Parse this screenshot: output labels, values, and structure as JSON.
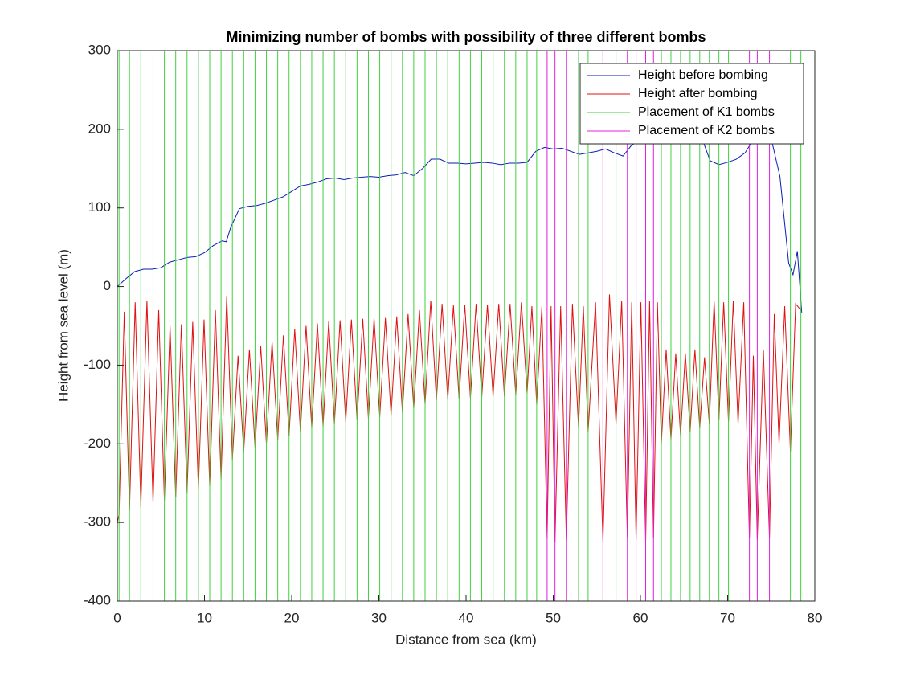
{
  "chart_data": {
    "type": "line",
    "title": "Minimizing number of bombs with possibility of three different bombs",
    "x_label": "Distance from sea (km)",
    "y_label": "Height from sea level (m)",
    "xlim": [
      0,
      80
    ],
    "ylim": [
      -400,
      300
    ],
    "xticks": [
      0,
      10,
      20,
      30,
      40,
      50,
      60,
      70,
      80
    ],
    "yticks": [
      -400,
      -300,
      -200,
      -100,
      0,
      100,
      200,
      300
    ],
    "legend": "upper right",
    "series": [
      {
        "name": "Height before bombing",
        "color": "#0a1fb8",
        "x": [
          0,
          1,
          2,
          3,
          4,
          5,
          6,
          7,
          8,
          9,
          10,
          11,
          12,
          12.5,
          13,
          14,
          15,
          16,
          17,
          18,
          19,
          20,
          21,
          22,
          23,
          24,
          25,
          26,
          27,
          28,
          29,
          30,
          31,
          32,
          33,
          34,
          35,
          36,
          37,
          38,
          39,
          40,
          41,
          42,
          43,
          44,
          45,
          46,
          47,
          48,
          49,
          50,
          51,
          52,
          53,
          54,
          55,
          56,
          57,
          58,
          59,
          60,
          61,
          62,
          63,
          64,
          65,
          66,
          67,
          68,
          69,
          70,
          71,
          72,
          73,
          74,
          75,
          76,
          77,
          77.5,
          78,
          78.5
        ],
        "values": [
          0,
          10,
          19,
          22,
          22,
          24,
          31,
          34,
          37,
          38,
          43,
          52,
          58,
          57,
          75,
          99,
          102,
          103,
          106,
          110,
          114,
          121,
          128,
          130,
          133,
          137,
          138,
          136,
          138,
          139,
          140,
          139,
          141,
          142,
          145,
          141,
          150,
          162,
          162,
          157,
          157,
          156,
          157,
          158,
          157,
          155,
          157,
          157,
          158,
          172,
          177,
          175,
          176,
          172,
          168,
          170,
          172,
          175,
          170,
          166,
          180,
          186,
          184,
          186,
          190,
          193,
          192,
          195,
          190,
          160,
          155,
          158,
          162,
          170,
          188,
          195,
          188,
          140,
          30,
          15,
          45,
          -33
        ]
      },
      {
        "name": "Height after bombing",
        "color": "#e01010",
        "x": [
          0,
          0.2,
          0.8,
          1.4,
          2.05,
          2.7,
          3.4,
          4.1,
          4.75,
          5.4,
          6.05,
          6.7,
          7.35,
          8.0,
          8.65,
          9.3,
          9.95,
          10.6,
          11.25,
          11.9,
          12.55,
          13.2,
          13.85,
          14.5,
          15.15,
          15.8,
          16.45,
          17.1,
          17.75,
          18.4,
          19.05,
          19.7,
          20.35,
          21.0,
          21.65,
          22.3,
          22.95,
          23.6,
          24.25,
          24.9,
          25.55,
          26.2,
          26.85,
          27.5,
          28.15,
          28.8,
          29.45,
          30.1,
          30.75,
          31.4,
          32.05,
          32.7,
          33.35,
          34.0,
          34.65,
          35.3,
          35.95,
          36.6,
          37.25,
          37.9,
          38.55,
          39.2,
          39.85,
          40.5,
          41.15,
          41.8,
          42.45,
          43.1,
          43.75,
          44.4,
          45.05,
          45.7,
          46.35,
          47.0,
          47.55,
          48.1,
          48.7,
          49.3,
          49.75,
          50.2,
          50.85,
          51.5,
          52.2,
          52.9,
          53.45,
          54.0,
          54.85,
          55.7,
          56.45,
          57.2,
          57.85,
          58.5,
          59.0,
          59.5,
          60.05,
          60.6,
          61.05,
          61.5,
          61.95,
          62.4,
          62.95,
          63.5,
          64.05,
          64.6,
          65.15,
          65.7,
          66.25,
          66.8,
          67.35,
          67.9,
          68.45,
          69.0,
          69.55,
          70.1,
          70.65,
          71.2,
          71.85,
          72.5,
          72.95,
          73.4,
          74.1,
          74.8,
          75.35,
          75.9,
          76.55,
          77.2,
          77.8,
          78.4
        ],
        "values": [
          -300,
          -290,
          -32,
          -285,
          -20,
          -280,
          -18,
          -275,
          -30,
          -272,
          -50,
          -268,
          -48,
          -262,
          -45,
          -258,
          -42,
          -255,
          -30,
          -245,
          -12,
          -220,
          -88,
          -210,
          -80,
          -205,
          -76,
          -200,
          -70,
          -195,
          -62,
          -190,
          -54,
          -185,
          -50,
          -180,
          -47,
          -178,
          -44,
          -175,
          -43,
          -172,
          -42,
          -170,
          -41,
          -168,
          -40,
          -166,
          -40,
          -164,
          -38,
          -160,
          -35,
          -155,
          -30,
          -150,
          -18,
          -145,
          -22,
          -144,
          -24,
          -143,
          -23,
          -142,
          -22,
          -141,
          -23,
          -140,
          -22,
          -140,
          -22,
          -138,
          -20,
          -136,
          -25,
          -150,
          -25,
          -320,
          -25,
          -325,
          -25,
          -322,
          -22,
          -180,
          -25,
          -185,
          -20,
          -325,
          -10,
          -175,
          -18,
          -320,
          -20,
          -322,
          -20,
          -325,
          -18,
          -320,
          -20,
          -200,
          -80,
          -195,
          -85,
          -190,
          -85,
          -185,
          -80,
          -180,
          -90,
          -175,
          -18,
          -170,
          -20,
          -172,
          -18,
          -175,
          -20,
          -320,
          -88,
          -322,
          -80,
          -320,
          -35,
          -200,
          -25,
          -210,
          -22,
          -30
        ]
      },
      {
        "name": "Placement of K1 bombs",
        "color": "#3fd23f",
        "positions": [
          0.2,
          1.4,
          2.7,
          4.1,
          5.4,
          6.7,
          8.0,
          9.3,
          10.6,
          11.9,
          13.2,
          14.5,
          15.8,
          17.1,
          18.4,
          19.7,
          21.0,
          22.3,
          23.6,
          24.9,
          26.2,
          27.5,
          28.8,
          30.1,
          31.4,
          32.7,
          34.0,
          35.3,
          36.6,
          37.9,
          39.2,
          40.5,
          41.8,
          43.1,
          44.4,
          45.7,
          47.0,
          48.1,
          52.9,
          54.0,
          57.2,
          62.4,
          63.5,
          64.6,
          65.7,
          66.8,
          67.9,
          69.0,
          70.1,
          71.2,
          75.9,
          77.2,
          78.4
        ]
      },
      {
        "name": "Placement of K2 bombs",
        "color": "#e020e0",
        "positions": [
          49.3,
          50.2,
          51.5,
          55.7,
          58.5,
          59.5,
          60.6,
          61.5,
          72.5,
          73.4,
          74.8
        ]
      }
    ]
  }
}
